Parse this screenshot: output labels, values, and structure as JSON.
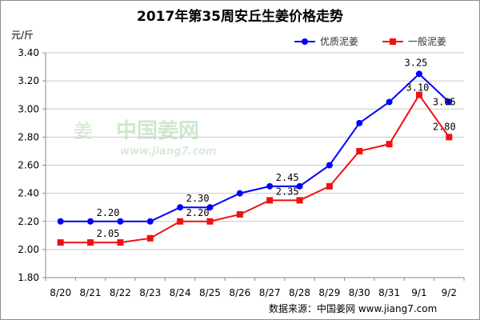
{
  "chart_data": {
    "type": "line",
    "title": "2017年第35周安丘生姜价格走势",
    "ylabel": "元/斤",
    "xlabel": "",
    "categories": [
      "8/20",
      "8/21",
      "8/22",
      "8/23",
      "8/24",
      "8/25",
      "8/26",
      "8/27",
      "8/28",
      "8/29",
      "8/30",
      "8/31",
      "9/1",
      "9/2"
    ],
    "y_ticks": [
      "1.80",
      "2.00",
      "2.20",
      "2.40",
      "2.60",
      "2.80",
      "3.00",
      "3.20",
      "3.40"
    ],
    "ylim": [
      1.8,
      3.4
    ],
    "grid": true,
    "legend_position": "top-right",
    "series": [
      {
        "name": "优质泥姜",
        "color": "#0000ff",
        "marker": "circle",
        "values": [
          2.2,
          2.2,
          2.2,
          2.2,
          2.3,
          2.3,
          2.4,
          2.45,
          2.45,
          2.6,
          2.9,
          3.05,
          3.25,
          3.05
        ]
      },
      {
        "name": "一般泥姜",
        "color": "#ee1111",
        "marker": "square",
        "values": [
          2.05,
          2.05,
          2.05,
          2.08,
          2.2,
          2.2,
          2.25,
          2.35,
          2.35,
          2.45,
          2.7,
          2.75,
          3.1,
          2.8
        ]
      }
    ],
    "data_labels": [
      {
        "series": 0,
        "index": 1,
        "text": "2.20"
      },
      {
        "series": 0,
        "index": 4,
        "text": "2.30"
      },
      {
        "series": 0,
        "index": 7,
        "text": "2.45"
      },
      {
        "series": 0,
        "index": 12,
        "text": "3.25"
      },
      {
        "series": 0,
        "index": 13,
        "text": "3.05"
      },
      {
        "series": 1,
        "index": 1,
        "text": "2.05"
      },
      {
        "series": 1,
        "index": 4,
        "text": "2.20"
      },
      {
        "series": 1,
        "index": 7,
        "text": "2.35"
      },
      {
        "series": 1,
        "index": 12,
        "text": "3.10"
      },
      {
        "series": 1,
        "index": 13,
        "text": "2.80"
      }
    ]
  },
  "watermark": {
    "text": "中国姜网",
    "url": "www.jiang7.com"
  },
  "source_note": "数据来源：中国姜网 www.jiang7.com"
}
